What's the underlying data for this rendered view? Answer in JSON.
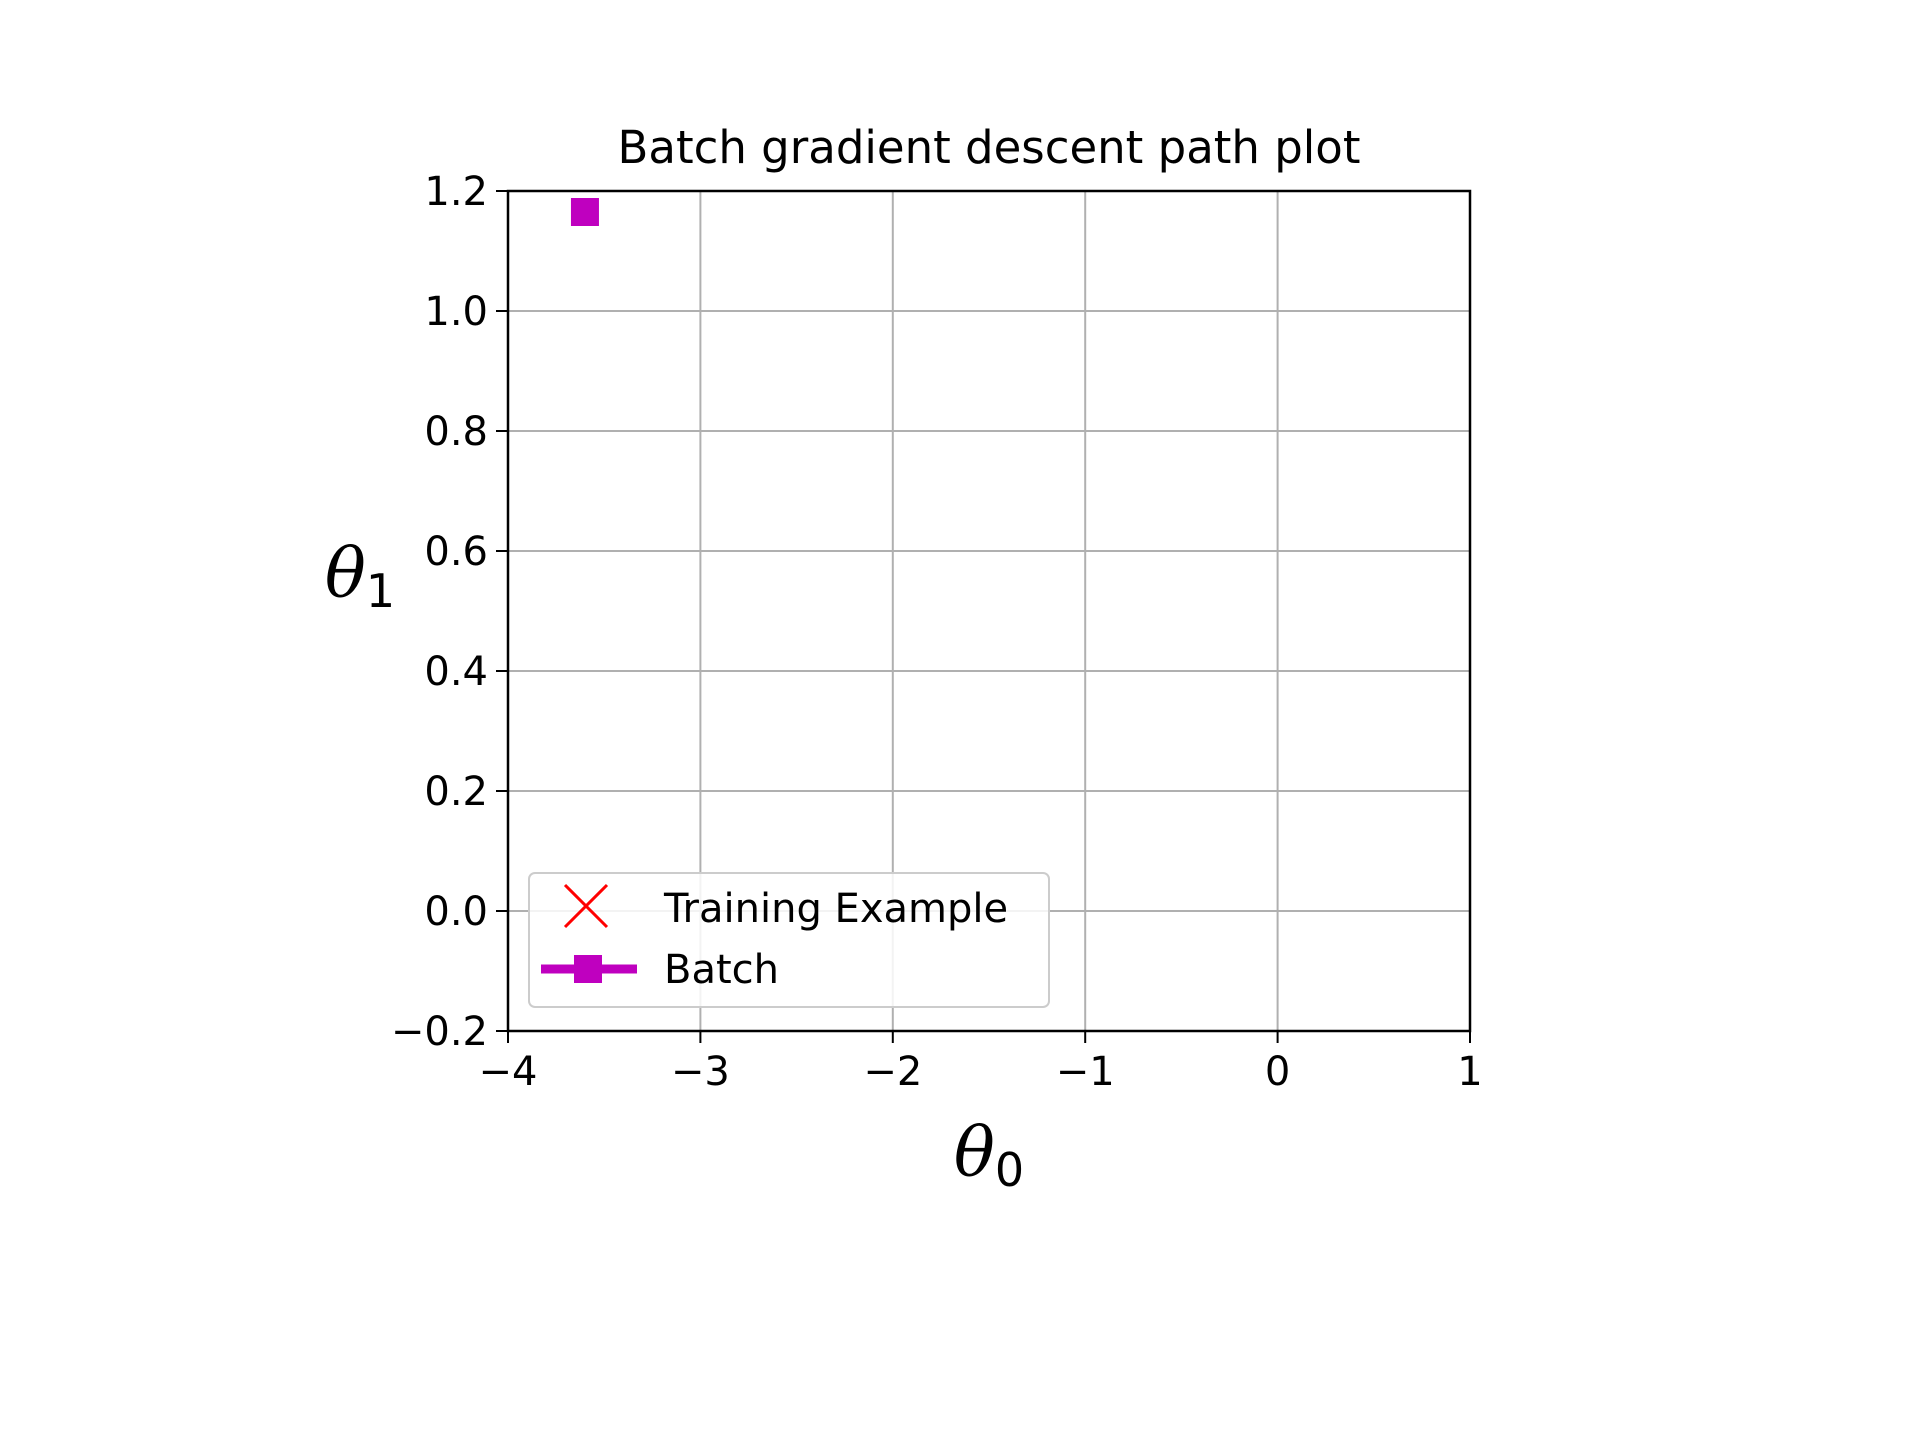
{
  "chart_data": {
    "type": "line",
    "title": "Batch gradient descent path plot",
    "xlabel": {
      "symbol": "θ",
      "subscript": "0"
    },
    "ylabel": {
      "symbol": "θ",
      "subscript": "1"
    },
    "xlim": [
      -4,
      1
    ],
    "ylim": [
      -0.2,
      1.2
    ],
    "xticks": [
      -4,
      -3,
      -2,
      -1,
      0,
      1
    ],
    "xtick_labels": [
      "−4",
      "−3",
      "−2",
      "−1",
      "0",
      "1"
    ],
    "yticks": [
      -0.2,
      0.0,
      0.2,
      0.4,
      0.6,
      0.8,
      1.0,
      1.2
    ],
    "ytick_labels": [
      "−0.2",
      "0.0",
      "0.2",
      "0.4",
      "0.6",
      "0.8",
      "1.0",
      "1.2"
    ],
    "grid": true,
    "legend_position": "lower-left",
    "series": [
      {
        "name": "Training Example",
        "marker": "x",
        "color": "#ff0000",
        "points": []
      },
      {
        "name": "Batch",
        "marker": "square",
        "line": true,
        "color": "#bf00bf",
        "points": [
          {
            "x": -3.6,
            "y": 1.165
          }
        ]
      }
    ]
  }
}
